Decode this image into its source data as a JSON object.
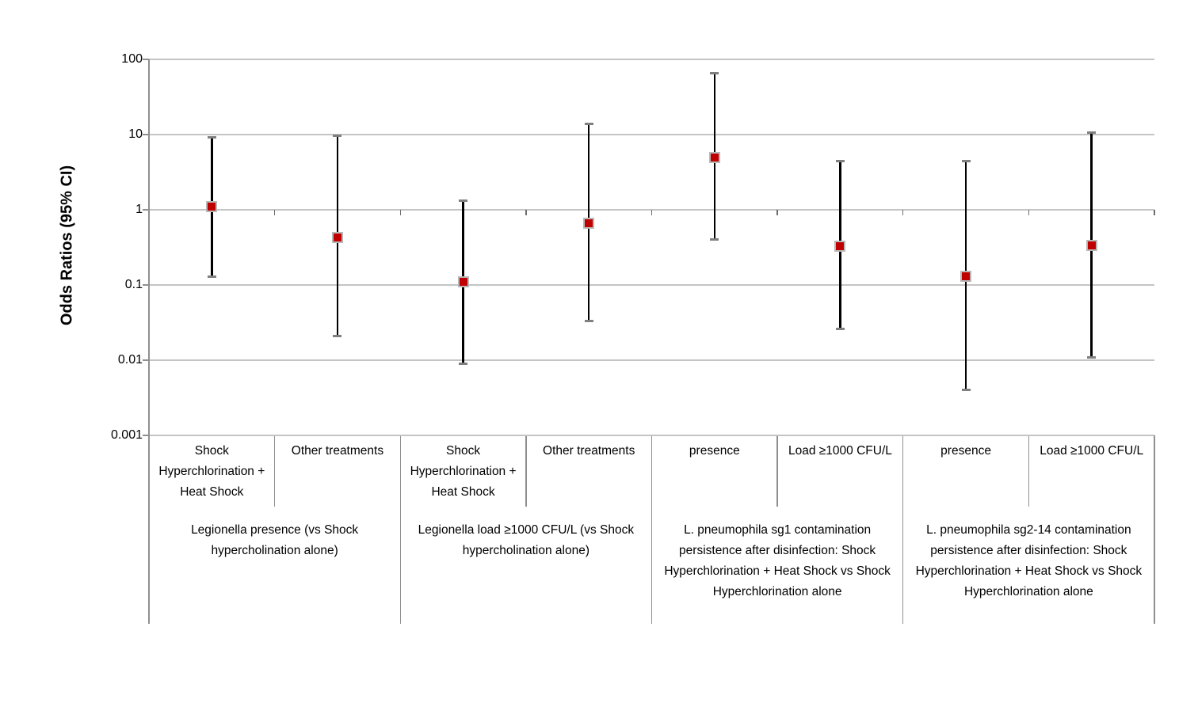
{
  "chart_data": {
    "type": "scatter",
    "subtype": "forest-plot-odds-ratios-with-95ci-error-bars",
    "title": "",
    "ylabel": "Odds Ratios (95% CI)",
    "yscale": "log",
    "ylim": [
      0.001,
      100
    ],
    "y_ticks": [
      {
        "label": "100",
        "value": 100
      },
      {
        "label": "10",
        "value": 10
      },
      {
        "label": "1",
        "value": 1
      },
      {
        "label": "0.1",
        "value": 0.1
      },
      {
        "label": "0.01",
        "value": 0.01
      },
      {
        "label": "0.001",
        "value": 0.001
      }
    ],
    "grid": true,
    "legend": "none",
    "groups": [
      {
        "label": "Legionella presence (vs Shock hypercholination alone)",
        "points": [
          {
            "category": "Shock Hyperchlorination + Heat Shock",
            "or": 1.1,
            "ci_low": 0.13,
            "ci_high": 9.2
          },
          {
            "category": "Other treatments",
            "or": 0.43,
            "ci_low": 0.021,
            "ci_high": 9.6
          }
        ]
      },
      {
        "label": "Legionella load ≥1000 CFU/L (vs Shock hypercholination alone)",
        "points": [
          {
            "category": "Shock Hyperchlorination + Heat Shock",
            "or": 0.11,
            "ci_low": 0.009,
            "ci_high": 1.33
          },
          {
            "category": "Other treatments",
            "or": 0.66,
            "ci_low": 0.033,
            "ci_high": 14
          }
        ]
      },
      {
        "label": "L. pneumophila sg1 contamination persistence after disinfection: Shock Hyperchlorination + Heat Shock vs Shock Hyperchlorination alone",
        "points": [
          {
            "category": "presence",
            "or": 5.0,
            "ci_low": 0.4,
            "ci_high": 65
          },
          {
            "category": "Load ≥1000 CFU/L",
            "or": 0.33,
            "ci_low": 0.026,
            "ci_high": 4.4
          }
        ]
      },
      {
        "label": "L. pneumophila sg2-14 contamination persistence after disinfection: Shock Hyperchlorination + Heat Shock vs Shock Hyperchlorination alone",
        "points": [
          {
            "category": "presence",
            "or": 0.13,
            "ci_low": 0.004,
            "ci_high": 4.4
          },
          {
            "category": "Load ≥1000 CFU/L",
            "or": 0.34,
            "ci_low": 0.011,
            "ci_high": 10.7
          }
        ]
      }
    ],
    "colors": {
      "marker_fill": "#C00000",
      "marker_border": "#B8B8B8",
      "error_line": "#000000",
      "error_cap": "#7F7F7F",
      "gridline": "#C4C4C4",
      "axis_line": "#8F8F8F",
      "tick_mark": "#6E6E6E",
      "text": "#000000",
      "background": "#FFFFFF"
    }
  }
}
